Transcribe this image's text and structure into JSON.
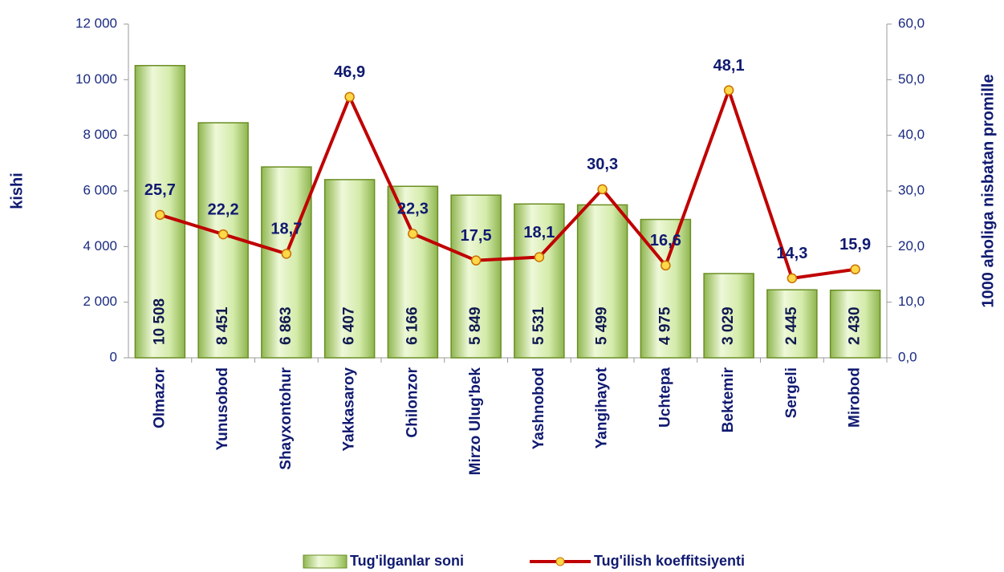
{
  "chart_data": {
    "type": "bar",
    "categories": [
      "Olmazor",
      "Yunusobod",
      "Shayxontohur",
      "Yakkasaroy",
      "Chilonzor",
      "Mirzo Ulug'bek",
      "Yashnobod",
      "Yangihayot",
      "Uchtepa",
      "Bektemir",
      "Sergeli",
      "Mirobod"
    ],
    "series": [
      {
        "name": "Tug'ilganlar  soni",
        "type": "bar",
        "axis": "y",
        "color": "#b8d982",
        "values": [
          10508,
          8451,
          6863,
          6407,
          6166,
          5849,
          5531,
          5499,
          4975,
          3029,
          2445,
          2430
        ],
        "value_labels": [
          "10 508",
          "8 451",
          "6 863",
          "6 407",
          "6 166",
          "5 849",
          "5 531",
          "5 499",
          "4 975",
          "3 029",
          "2 445",
          "2 430"
        ]
      },
      {
        "name": "Tug'ilish koeffitsiyenti",
        "type": "line",
        "axis": "y2",
        "color": "#c00000",
        "values": [
          25.7,
          22.2,
          18.7,
          46.9,
          22.3,
          17.5,
          18.1,
          30.3,
          16.6,
          48.1,
          14.3,
          15.9
        ],
        "value_labels": [
          "25,7",
          "22,2",
          "18,7",
          "46,9",
          "22,3",
          "17,5",
          "18,1",
          "30,3",
          "16,6",
          "48,1",
          "14,3",
          "15,9"
        ]
      }
    ],
    "ylabel": "kishi",
    "y2label": "1000 aholiga nisbatan promille",
    "ylim": [
      0,
      12000
    ],
    "yticks": [
      0,
      {
        "value": 2000,
        "label": "2 000"
      },
      {
        "value": 4000,
        "label": "4 000"
      },
      {
        "value": 6000,
        "label": "6 000"
      },
      {
        "value": 8000,
        "label": "8 000"
      },
      {
        "value": 10000,
        "label": "10 000"
      },
      {
        "value": 12000,
        "label": "12 000"
      }
    ],
    "y2lim": [
      0,
      60
    ],
    "y2ticks": [
      {
        "value": 0,
        "label": "0,0"
      },
      {
        "value": 10,
        "label": "10,0"
      },
      {
        "value": 20,
        "label": "20,0"
      },
      {
        "value": 30,
        "label": "30,0"
      },
      {
        "value": 40,
        "label": "40,0"
      },
      {
        "value": 50,
        "label": "50,0"
      },
      {
        "value": 60,
        "label": "60,0"
      }
    ],
    "legend": "bottom"
  }
}
